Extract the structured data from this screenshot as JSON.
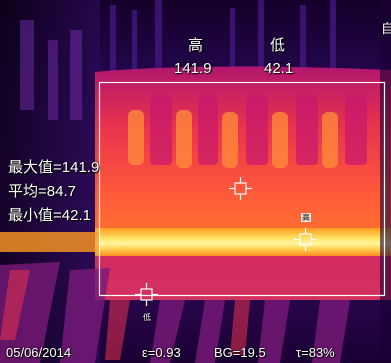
{
  "header": {
    "high_label": "高",
    "low_label": "低",
    "high_value": "141.9",
    "low_value": "42.1"
  },
  "side_label": "自",
  "stats": {
    "max": "最大值=141.9",
    "avg": "平均=84.7",
    "min": "最小值=42.1"
  },
  "markers": {
    "high_tag": "高",
    "low_tag": "低"
  },
  "status_bar": {
    "date": "05/06/2014",
    "emissivity": "ε=0.93",
    "background": "BG=19.5",
    "transmission": "τ=83%"
  },
  "colors": {
    "roi_box": "#ffffff",
    "marker": "#ffffff",
    "hot": "#fff6a0",
    "warm": "#ff5a3a",
    "mid": "#c8176e",
    "cool": "#3a0c6b",
    "cold": "#12001f"
  }
}
